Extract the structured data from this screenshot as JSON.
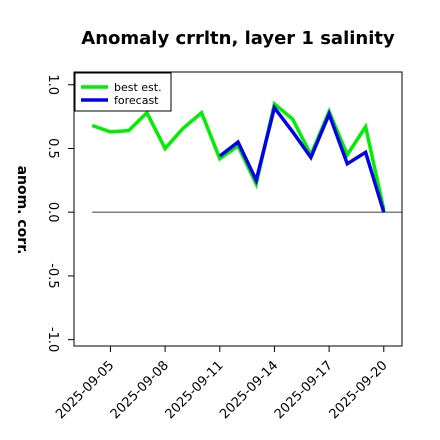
{
  "chart_data": {
    "type": "line",
    "title": "Anomaly crrltn, layer 1 salinity",
    "ylabel": "anom. corr.",
    "xlabel": "",
    "ylim": [
      -1.05,
      1.1
    ],
    "yticks": [
      -1.0,
      -0.5,
      0.0,
      0.5,
      1.0
    ],
    "ytick_labels": [
      "-1.0",
      "-0.5",
      "0.0",
      "0.5",
      "1.0"
    ],
    "x": [
      "2025-09-04",
      "2025-09-05",
      "2025-09-06",
      "2025-09-07",
      "2025-09-08",
      "2025-09-09",
      "2025-09-10",
      "2025-09-11",
      "2025-09-12",
      "2025-09-13",
      "2025-09-14",
      "2025-09-15",
      "2025-09-16",
      "2025-09-17",
      "2025-09-18",
      "2025-09-19",
      "2025-09-20"
    ],
    "xticks": [
      "2025-09-05",
      "2025-09-08",
      "2025-09-11",
      "2025-09-14",
      "2025-09-17",
      "2025-09-20"
    ],
    "xtick_colors": [
      "#000000",
      "#000000",
      "#228b22",
      "#000000",
      "#000000",
      "#000000"
    ],
    "xlim": [
      "2025-09-03",
      "2025-09-21"
    ],
    "series": [
      {
        "name": "best est.",
        "color": "#00ee00",
        "values": [
          0.68,
          0.63,
          0.64,
          0.78,
          0.5,
          0.66,
          0.78,
          0.42,
          0.52,
          0.22,
          0.85,
          0.73,
          0.45,
          0.79,
          0.45,
          0.67,
          0.02
        ]
      },
      {
        "name": "forecast",
        "color": "#0000ee",
        "values": [
          null,
          null,
          null,
          null,
          null,
          null,
          null,
          0.44,
          0.55,
          0.25,
          0.82,
          0.63,
          0.43,
          0.77,
          0.38,
          0.47,
          0.0
        ]
      }
    ],
    "reference_line": 0.0,
    "reference_color": "#555555",
    "legend_position": "top-left",
    "grid": false
  }
}
